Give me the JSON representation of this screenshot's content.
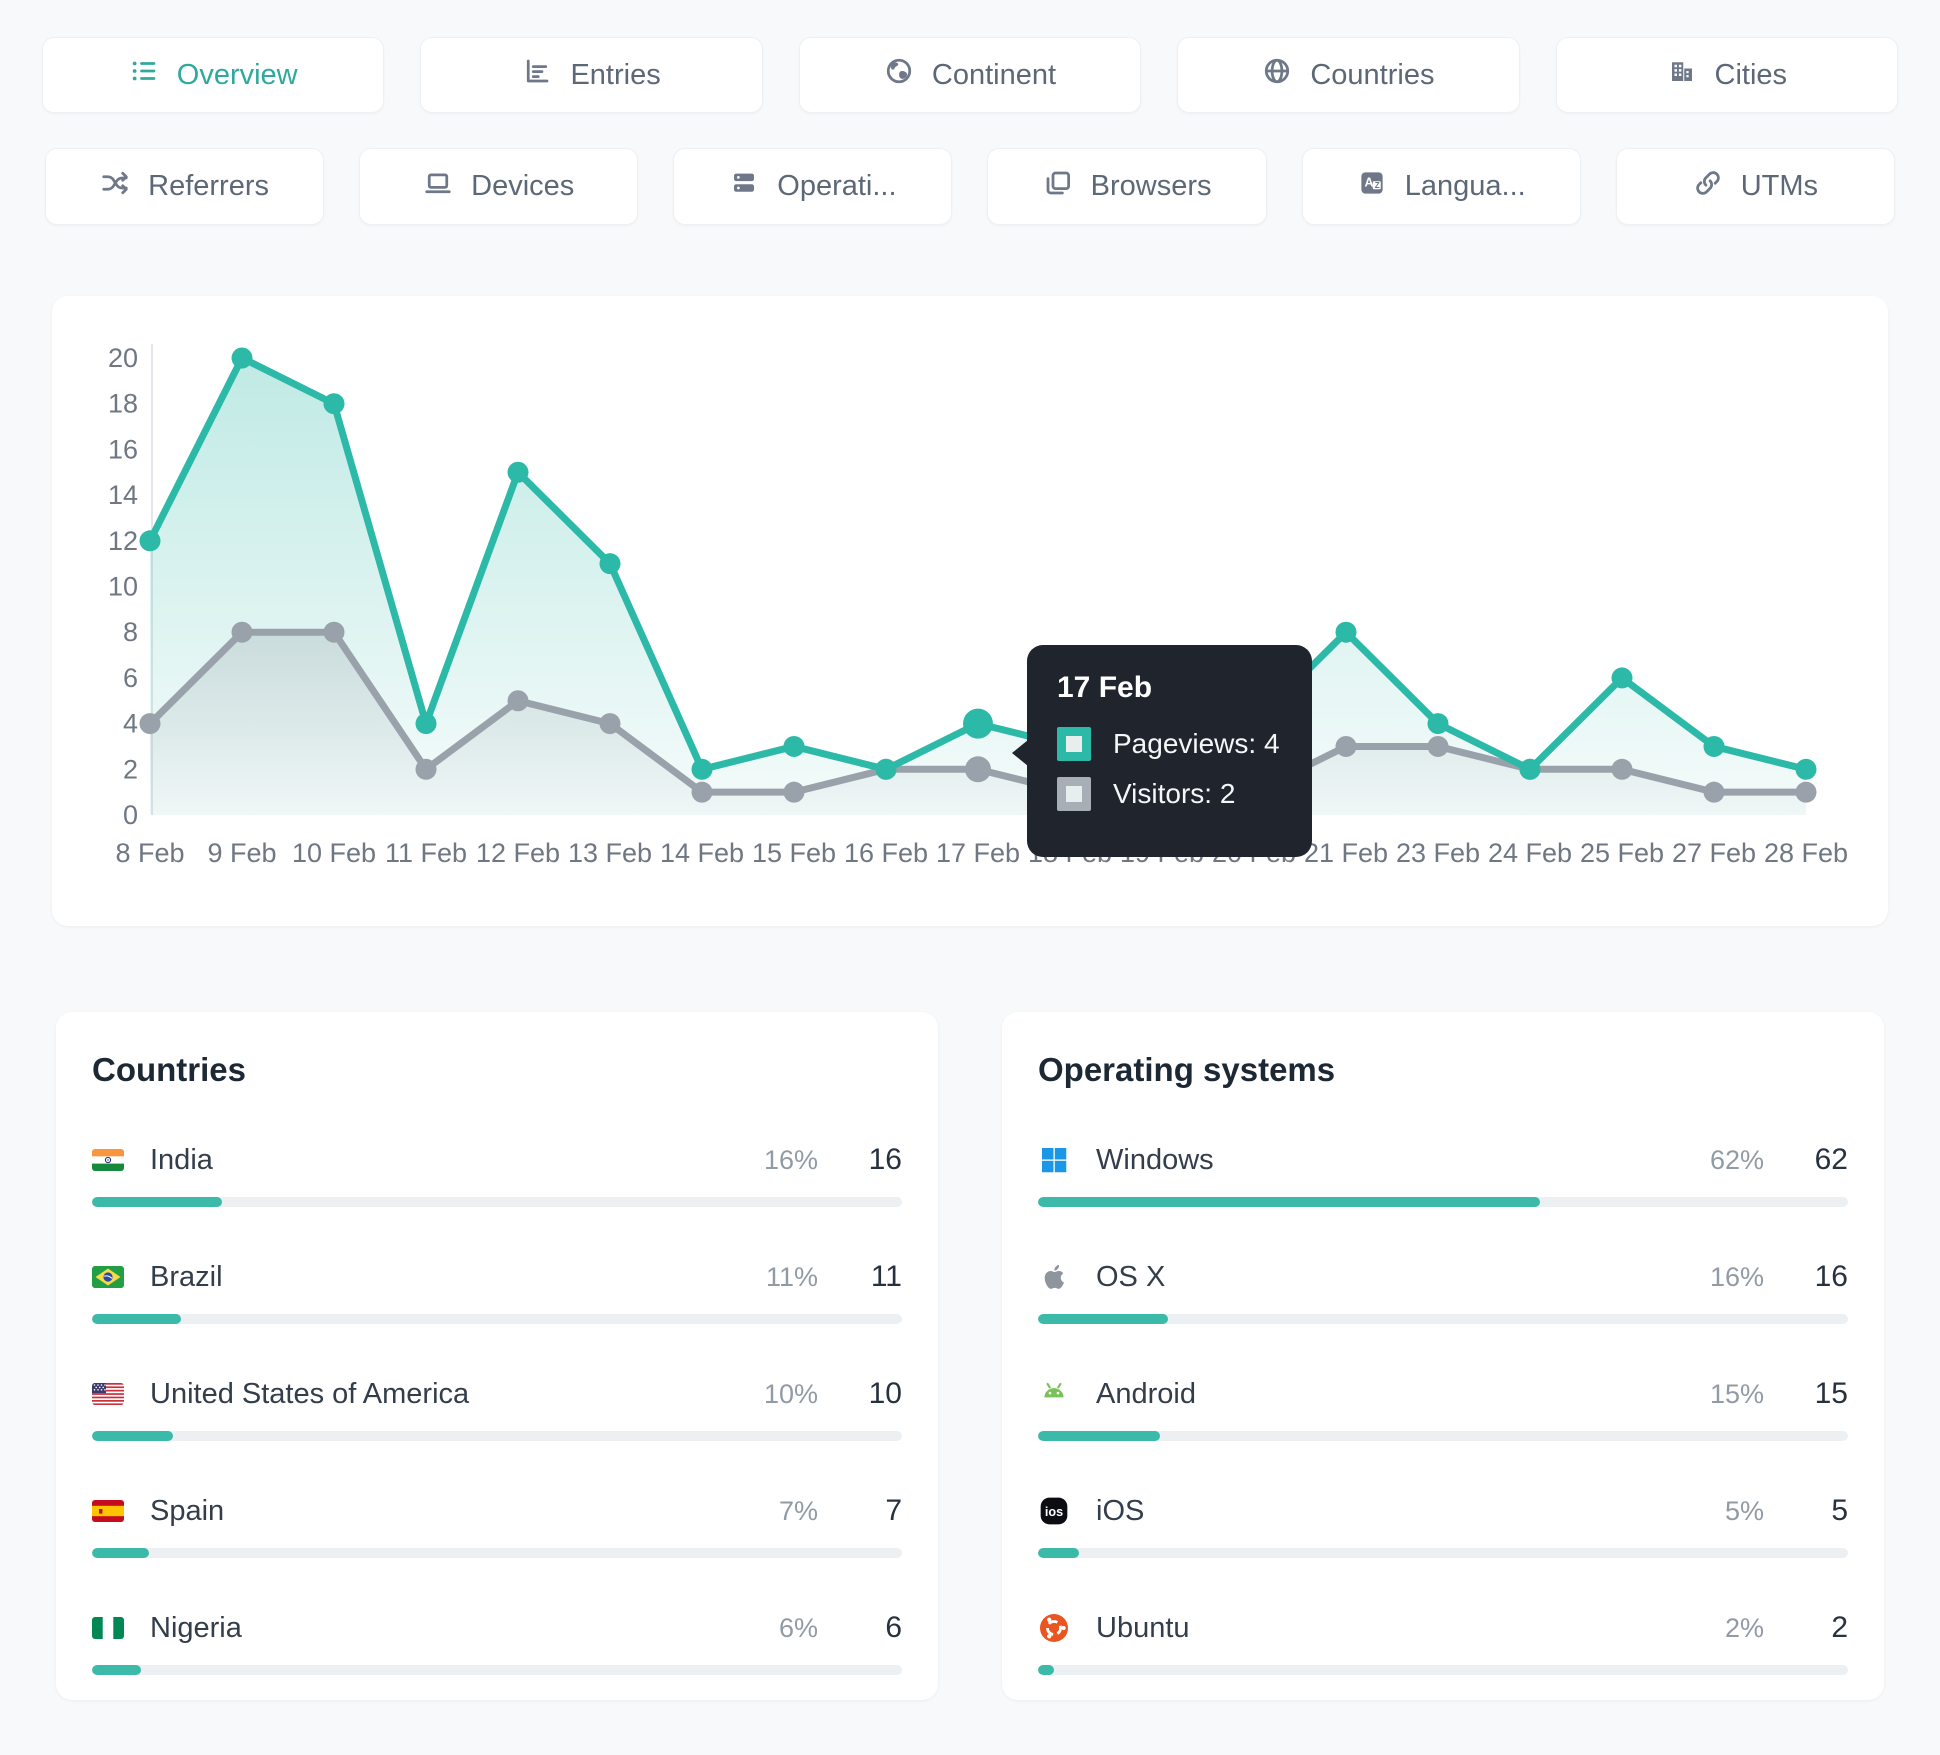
{
  "page": {
    "accent": "#2db9a8",
    "background": "#f7f9fa",
    "tooltip_bg": "#20252d"
  },
  "tabs_row1": [
    {
      "label": "Overview",
      "icon": "list-icon",
      "active": true
    },
    {
      "label": "Entries",
      "icon": "bar-chart-icon",
      "active": false
    },
    {
      "label": "Continent",
      "icon": "earth-icon",
      "active": false
    },
    {
      "label": "Countries",
      "icon": "globe-icon",
      "active": false
    },
    {
      "label": "Cities",
      "icon": "buildings-icon",
      "active": false
    }
  ],
  "tabs_row2": [
    {
      "label": "Referrers",
      "icon": "shuffle-icon",
      "active": false
    },
    {
      "label": "Devices",
      "icon": "laptop-icon",
      "active": false
    },
    {
      "label": "Operati...",
      "icon": "server-icon",
      "active": false
    },
    {
      "label": "Browsers",
      "icon": "browser-windows-icon",
      "active": false
    },
    {
      "label": "Langua...",
      "icon": "translate-icon",
      "active": false
    },
    {
      "label": "UTMs",
      "icon": "link-icon",
      "active": false
    }
  ],
  "chart_data": {
    "type": "line",
    "title": "",
    "xlabel": "",
    "ylabel": "",
    "ylim": [
      0,
      20
    ],
    "y_ticks": [
      0,
      2,
      4,
      6,
      8,
      10,
      12,
      14,
      16,
      18,
      20
    ],
    "grid": false,
    "legend_position": "none",
    "categories": [
      "8 Feb",
      "9 Feb",
      "10 Feb",
      "11 Feb",
      "12 Feb",
      "13 Feb",
      "14 Feb",
      "15 Feb",
      "16 Feb",
      "17 Feb",
      "18 Feb",
      "19 Feb",
      "20 Feb",
      "21 Feb",
      "23 Feb",
      "24 Feb",
      "25 Feb",
      "27 Feb",
      "28 Feb"
    ],
    "series": [
      {
        "name": "Pageviews",
        "color": "#2db9a8",
        "values": [
          12,
          20,
          18,
          4,
          15,
          11,
          2,
          3,
          2,
          4,
          3,
          2,
          4,
          8,
          4,
          2,
          6,
          3,
          2
        ]
      },
      {
        "name": "Visitors",
        "color": "#99a2aa",
        "values": [
          4,
          8,
          8,
          2,
          5,
          4,
          1,
          1,
          2,
          2,
          1,
          1,
          1,
          3,
          3,
          2,
          2,
          1,
          1
        ]
      }
    ],
    "highlight_index": 9
  },
  "tooltip": {
    "title": "17 Feb",
    "rows": [
      {
        "label": "Pageviews: 4",
        "color": "#2db9a8"
      },
      {
        "label": "Visitors: 2",
        "color": "#a8aeb5"
      }
    ]
  },
  "countries": {
    "title": "Countries",
    "rows": [
      {
        "name": "India",
        "percent": "16%",
        "value": "16",
        "bar": 16,
        "flag": "india-flag-icon"
      },
      {
        "name": "Brazil",
        "percent": "11%",
        "value": "11",
        "bar": 11,
        "flag": "brazil-flag-icon"
      },
      {
        "name": "United States of America",
        "percent": "10%",
        "value": "10",
        "bar": 10,
        "flag": "usa-flag-icon"
      },
      {
        "name": "Spain",
        "percent": "7%",
        "value": "7",
        "bar": 7,
        "flag": "spain-flag-icon"
      },
      {
        "name": "Nigeria",
        "percent": "6%",
        "value": "6",
        "bar": 6,
        "flag": "nigeria-flag-icon"
      }
    ]
  },
  "os": {
    "title": "Operating systems",
    "rows": [
      {
        "name": "Windows",
        "percent": "62%",
        "value": "62",
        "bar": 62,
        "icon": "windows-icon"
      },
      {
        "name": "OS X",
        "percent": "16%",
        "value": "16",
        "bar": 16,
        "icon": "apple-icon"
      },
      {
        "name": "Android",
        "percent": "15%",
        "value": "15",
        "bar": 15,
        "icon": "android-icon"
      },
      {
        "name": "iOS",
        "percent": "5%",
        "value": "5",
        "bar": 5,
        "icon": "ios-icon"
      },
      {
        "name": "Ubuntu",
        "percent": "2%",
        "value": "2",
        "bar": 2,
        "icon": "ubuntu-icon"
      }
    ]
  }
}
